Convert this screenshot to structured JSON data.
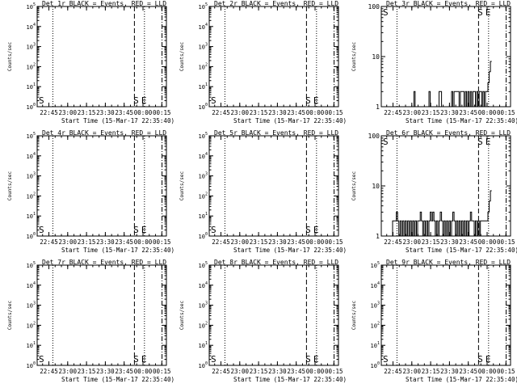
{
  "figure": {
    "background": "#ffffff",
    "line_color": "#000000"
  },
  "chart_data": [
    {
      "type": "line",
      "title": "Det 1r BLACK = Events, RED = LLD",
      "xlabel": "Start Time (15-Mar-17 22:35:40)",
      "ylabel": "Counts/sec",
      "log_y": true,
      "ylim": [
        1,
        100000
      ],
      "y_ticks": [
        "10^0",
        "10^1",
        "10^2",
        "10^3",
        "10^4",
        "10^5"
      ],
      "x_ticks": [
        "22:45",
        "23:00",
        "23:15",
        "23:30",
        "23:45",
        "00:00",
        "00:15"
      ],
      "markers": [
        "S",
        "S",
        "E"
      ],
      "series": []
    },
    {
      "type": "line",
      "title": "Det 2r BLACK = Events, RED = LLD",
      "xlabel": "Start Time (15-Mar-17 22:35:40)",
      "ylabel": "Counts/sec",
      "log_y": true,
      "ylim": [
        1,
        100000
      ],
      "y_ticks": [
        "10^0",
        "10^1",
        "10^2",
        "10^3",
        "10^4",
        "10^5"
      ],
      "x_ticks": [
        "22:45",
        "23:00",
        "23:15",
        "23:30",
        "23:45",
        "00:00",
        "00:15"
      ],
      "markers": [
        "S",
        "S",
        "E"
      ],
      "series": []
    },
    {
      "type": "line",
      "title": "Det 3r BLACK = Events, RED = LLD",
      "xlabel": "Start Time (15-Mar-17 22:35:40)",
      "ylabel": "Counts/sec",
      "log_y": true,
      "ylim": [
        1,
        100
      ],
      "y_ticks": [
        "1",
        "10",
        "100"
      ],
      "x_ticks": [
        "22:45",
        "23:00",
        "23:15",
        "23:30",
        "23:45",
        "00:00",
        "00:15"
      ],
      "markers": [
        "S",
        "S",
        "E"
      ],
      "series": [
        {
          "x": [
            25,
            26,
            26,
            27,
            27,
            38,
            38,
            39,
            39,
            46,
            46,
            47,
            47,
            48,
            48,
            56,
            56,
            57,
            57,
            58,
            58,
            62,
            62,
            63,
            63,
            66,
            66,
            67,
            67,
            68,
            68,
            69,
            69,
            70,
            70,
            71,
            71,
            72,
            72,
            73,
            73,
            74,
            74,
            75,
            75,
            76,
            76,
            77,
            77,
            78,
            78,
            80,
            80,
            81,
            81,
            82,
            82,
            83,
            83,
            84,
            84,
            85,
            85,
            86,
            86,
            87,
            87,
            88
          ],
          "y": [
            1,
            1,
            2,
            2,
            1,
            1,
            2,
            2,
            1,
            1,
            2,
            2,
            2,
            2,
            1,
            1,
            2,
            2,
            1,
            1,
            2,
            2,
            1,
            1,
            2,
            2,
            1,
            1,
            2,
            2,
            1,
            1,
            2,
            2,
            1,
            1,
            2,
            2,
            1,
            1,
            2,
            2,
            2,
            2,
            1,
            1,
            2,
            2,
            1,
            1,
            2,
            2,
            1,
            1,
            2,
            2,
            1,
            1,
            2,
            2,
            2,
            2,
            3,
            3,
            5,
            5,
            8,
            8
          ]
        }
      ]
    },
    {
      "type": "line",
      "title": "Det 4r BLACK = Events, RED = LLD",
      "xlabel": "Start Time (15-Mar-17 22:35:40)",
      "ylabel": "Counts/sec",
      "log_y": true,
      "ylim": [
        1,
        100000
      ],
      "y_ticks": [
        "10^0",
        "10^1",
        "10^2",
        "10^3",
        "10^4",
        "10^5"
      ],
      "x_ticks": [
        "22:45",
        "23:00",
        "23:15",
        "23:30",
        "23:45",
        "00:00",
        "00:15"
      ],
      "markers": [
        "S",
        "S",
        "E"
      ],
      "series": []
    },
    {
      "type": "line",
      "title": "Det 5r BLACK = Events, RED = LLD",
      "xlabel": "Start Time (15-Mar-17 22:35:40)",
      "ylabel": "Counts/sec",
      "log_y": true,
      "ylim": [
        1,
        100000
      ],
      "y_ticks": [
        "10^0",
        "10^1",
        "10^2",
        "10^3",
        "10^4",
        "10^5"
      ],
      "x_ticks": [
        "22:45",
        "23:00",
        "23:15",
        "23:30",
        "23:45",
        "00:00",
        "00:15"
      ],
      "markers": [
        "S",
        "S",
        "E"
      ],
      "series": []
    },
    {
      "type": "line",
      "title": "Det 6r BLACK = Events, RED = LLD",
      "xlabel": "Start Time (15-Mar-17 22:35:40)",
      "ylabel": "Counts/sec",
      "log_y": true,
      "ylim": [
        1,
        100
      ],
      "y_ticks": [
        "1",
        "10",
        "100"
      ],
      "x_ticks": [
        "22:45",
        "23:00",
        "23:15",
        "23:30",
        "23:45",
        "00:00",
        "00:15"
      ],
      "markers": [
        "S",
        "S",
        "E"
      ],
      "series": [
        {
          "x": [
            8,
            9,
            9,
            10,
            10,
            12,
            12,
            13,
            13,
            14,
            14,
            15,
            15,
            16,
            16,
            17,
            17,
            18,
            18,
            19,
            19,
            20,
            20,
            21,
            21,
            22,
            22,
            23,
            23,
            24,
            24,
            25,
            25,
            26,
            26,
            27,
            27,
            28,
            28,
            29,
            29,
            30,
            30,
            31,
            31,
            32,
            32,
            33,
            33,
            34,
            34,
            35,
            35,
            36,
            36,
            37,
            37,
            38,
            38,
            39,
            39,
            40,
            40,
            41,
            41,
            42,
            42,
            43,
            43,
            44,
            44,
            45,
            45,
            46,
            46,
            47,
            47,
            48,
            48,
            49,
            49,
            50,
            50,
            51,
            51,
            52,
            52,
            53,
            53,
            54,
            54,
            55,
            55,
            56,
            56,
            57,
            57,
            58,
            58,
            59,
            59,
            60,
            60,
            61,
            61,
            62,
            62,
            63,
            63,
            64,
            64,
            65,
            65,
            66,
            66,
            67,
            67,
            68,
            68,
            69,
            69,
            70,
            70,
            71,
            71,
            72,
            72,
            73,
            73,
            74,
            74,
            75,
            75,
            76,
            76,
            77,
            77,
            78,
            78,
            79,
            79,
            80,
            80,
            81,
            81,
            82,
            82,
            83,
            83,
            84,
            84,
            85,
            85,
            86,
            86,
            87,
            87,
            88
          ],
          "y": [
            1,
            1,
            2,
            2,
            2,
            2,
            3,
            3,
            2,
            2,
            1,
            1,
            2,
            2,
            1,
            1,
            2,
            2,
            1,
            1,
            2,
            2,
            1,
            1,
            2,
            2,
            1,
            1,
            2,
            2,
            1,
            1,
            2,
            2,
            1,
            1,
            2,
            2,
            1,
            1,
            2,
            2,
            2,
            2,
            3,
            3,
            2,
            2,
            1,
            1,
            2,
            2,
            1,
            1,
            2,
            2,
            1,
            1,
            2,
            2,
            3,
            3,
            2,
            2,
            3,
            3,
            2,
            2,
            1,
            1,
            2,
            2,
            1,
            1,
            2,
            2,
            3,
            3,
            2,
            2,
            1,
            1,
            2,
            2,
            1,
            1,
            2,
            2,
            1,
            1,
            2,
            2,
            1,
            1,
            2,
            2,
            3,
            3,
            2,
            2,
            1,
            1,
            2,
            2,
            1,
            1,
            2,
            2,
            1,
            1,
            2,
            2,
            1,
            1,
            2,
            2,
            1,
            1,
            2,
            2,
            1,
            1,
            2,
            2,
            3,
            3,
            2,
            2,
            2,
            2,
            1,
            1,
            2,
            2,
            1,
            1,
            2,
            2,
            1,
            1,
            2,
            2,
            2,
            2,
            2,
            2,
            2,
            2,
            2,
            2,
            2,
            2,
            3,
            3,
            5,
            5,
            8,
            8
          ]
        }
      ]
    },
    {
      "type": "line",
      "title": "Det 7r BLACK = Events, RED = LLD",
      "xlabel": "Start Time (15-Mar-17 22:35:40)",
      "ylabel": "Counts/sec",
      "log_y": true,
      "ylim": [
        1,
        100000
      ],
      "y_ticks": [
        "10^0",
        "10^1",
        "10^2",
        "10^3",
        "10^4",
        "10^5"
      ],
      "x_ticks": [
        "22:45",
        "23:00",
        "23:15",
        "23:30",
        "23:45",
        "00:00",
        "00:15"
      ],
      "markers": [
        "S",
        "S",
        "E"
      ],
      "series": []
    },
    {
      "type": "line",
      "title": "Det 8r BLACK = Events, RED = LLD",
      "xlabel": "Start Time (15-Mar-17 22:35:40)",
      "ylabel": "Counts/sec",
      "log_y": true,
      "ylim": [
        1,
        100000
      ],
      "y_ticks": [
        "10^0",
        "10^1",
        "10^2",
        "10^3",
        "10^4",
        "10^5"
      ],
      "x_ticks": [
        "22:45",
        "23:00",
        "23:15",
        "23:30",
        "23:45",
        "00:00",
        "00:15"
      ],
      "markers": [
        "S",
        "S",
        "E"
      ],
      "series": []
    },
    {
      "type": "line",
      "title": "Det 9r BLACK = Events, RED = LLD",
      "xlabel": "Start Time (15-Mar-17 22:35:40)",
      "ylabel": "Counts/sec",
      "log_y": true,
      "ylim": [
        1,
        100000
      ],
      "y_ticks": [
        "10^0",
        "10^1",
        "10^2",
        "10^3",
        "10^4",
        "10^5"
      ],
      "x_ticks": [
        "22:45",
        "23:00",
        "23:15",
        "23:30",
        "23:45",
        "00:00",
        "00:15"
      ],
      "markers": [
        "S",
        "S",
        "E"
      ],
      "series": []
    }
  ]
}
